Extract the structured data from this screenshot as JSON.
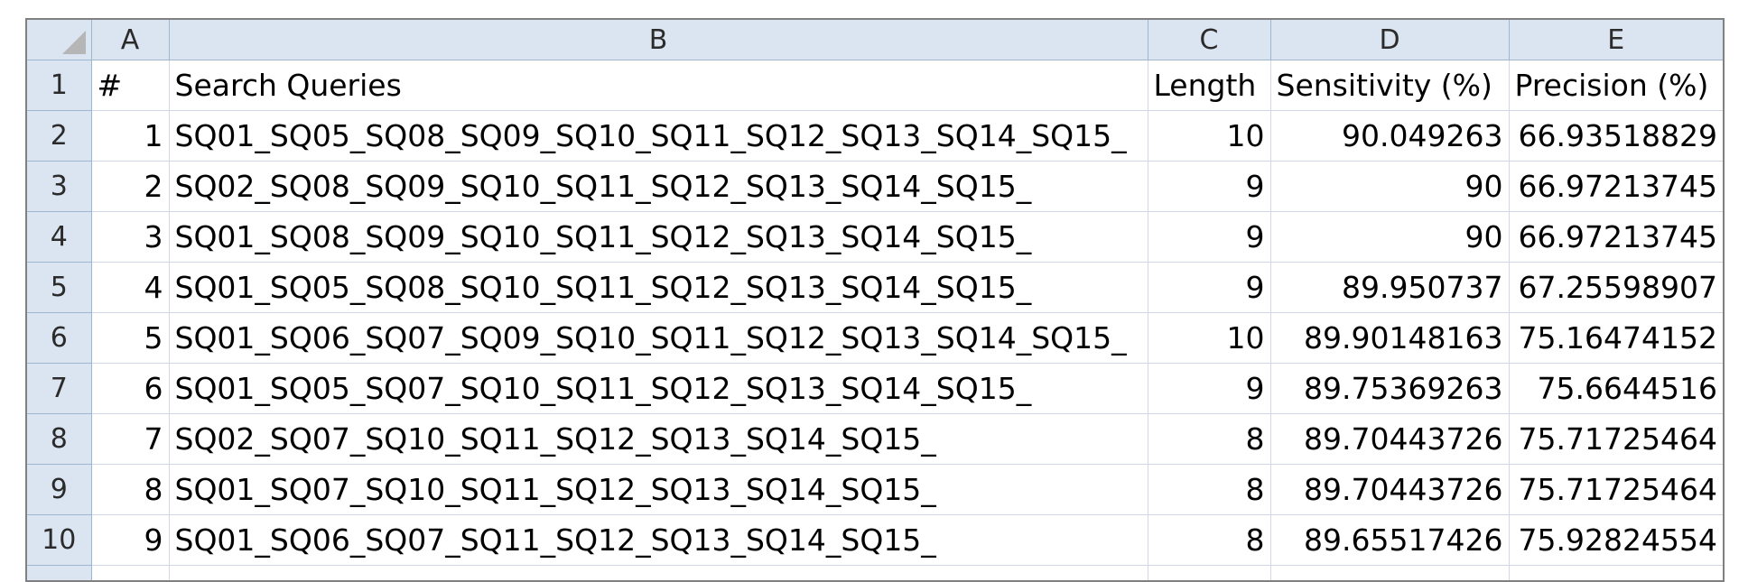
{
  "columns": [
    "A",
    "B",
    "C",
    "D",
    "E"
  ],
  "header_row": {
    "row_label": "1",
    "cells": [
      "#",
      "Search Queries",
      "Length",
      "Sensitivity (%)",
      "Precision (%)"
    ]
  },
  "rows": [
    {
      "row_label": "2",
      "index": "1",
      "query": "SQ01_SQ05_SQ08_SQ09_SQ10_SQ11_SQ12_SQ13_SQ14_SQ15_",
      "length": "10",
      "sensitivity": "90.049263",
      "precision": "66.93518829"
    },
    {
      "row_label": "3",
      "index": "2",
      "query": "SQ02_SQ08_SQ09_SQ10_SQ11_SQ12_SQ13_SQ14_SQ15_",
      "length": "9",
      "sensitivity": "90",
      "precision": "66.97213745"
    },
    {
      "row_label": "4",
      "index": "3",
      "query": "SQ01_SQ08_SQ09_SQ10_SQ11_SQ12_SQ13_SQ14_SQ15_",
      "length": "9",
      "sensitivity": "90",
      "precision": "66.97213745"
    },
    {
      "row_label": "5",
      "index": "4",
      "query": "SQ01_SQ05_SQ08_SQ10_SQ11_SQ12_SQ13_SQ14_SQ15_",
      "length": "9",
      "sensitivity": "89.950737",
      "precision": "67.25598907"
    },
    {
      "row_label": "6",
      "index": "5",
      "query": "SQ01_SQ06_SQ07_SQ09_SQ10_SQ11_SQ12_SQ13_SQ14_SQ15_",
      "length": "10",
      "sensitivity": "89.90148163",
      "precision": "75.16474152"
    },
    {
      "row_label": "7",
      "index": "6",
      "query": "SQ01_SQ05_SQ07_SQ10_SQ11_SQ12_SQ13_SQ14_SQ15_",
      "length": "9",
      "sensitivity": "89.75369263",
      "precision": "75.6644516"
    },
    {
      "row_label": "8",
      "index": "7",
      "query": "SQ02_SQ07_SQ10_SQ11_SQ12_SQ13_SQ14_SQ15_",
      "length": "8",
      "sensitivity": "89.70443726",
      "precision": "75.71725464"
    },
    {
      "row_label": "9",
      "index": "8",
      "query": "SQ01_SQ07_SQ10_SQ11_SQ12_SQ13_SQ14_SQ15_",
      "length": "8",
      "sensitivity": "89.70443726",
      "precision": "75.71725464"
    },
    {
      "row_label": "10",
      "index": "9",
      "query": "SQ01_SQ06_SQ07_SQ11_SQ12_SQ13_SQ14_SQ15_",
      "length": "8",
      "sensitivity": "89.65517426",
      "precision": "75.92824554"
    }
  ]
}
